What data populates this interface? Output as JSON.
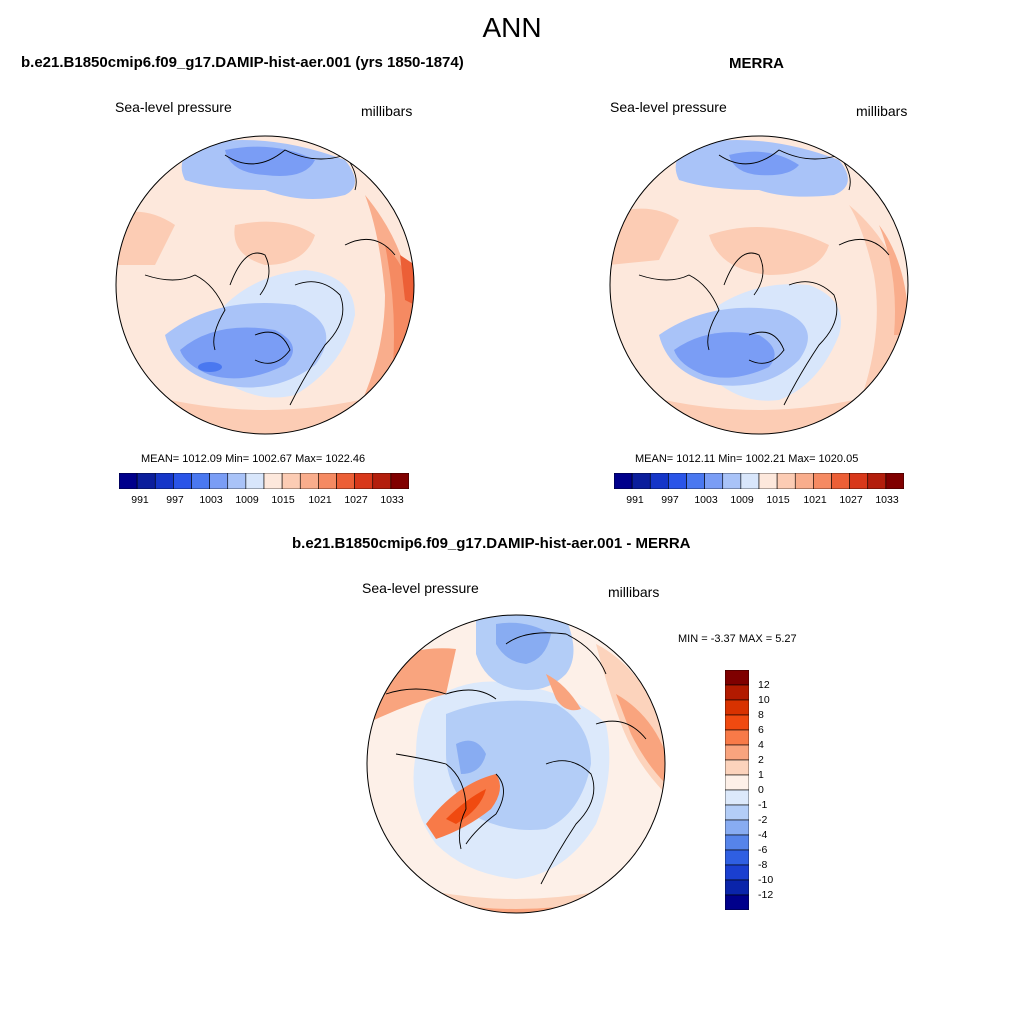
{
  "title": "ANN",
  "panels": {
    "model": {
      "title": "b.e21.B1850cmip6.f09_g17.DAMIP-hist-aer.001 (yrs 1850-1874)",
      "variable": "Sea-level pressure",
      "units": "millibars",
      "stats": "MEAN= 1012.09  Min= 1002.67  Max= 1022.46"
    },
    "obs": {
      "title": "MERRA",
      "variable": "Sea-level pressure",
      "units": "millibars",
      "stats": "MEAN= 1012.11  Min= 1002.21  Max= 1020.05"
    },
    "diff": {
      "title": "b.e21.B1850cmip6.f09_g17.DAMIP-hist-aer.001 - MERRA",
      "variable": "Sea-level pressure",
      "units": "millibars",
      "stats": "MIN =  -3.37 MAX =   5.27"
    }
  },
  "chart_data": [
    {
      "type": "heatmap",
      "title": "b.e21.B1850cmip6.f09_g17.DAMIP-hist-aer.001 (yrs 1850-1874)",
      "variable": "Sea-level pressure",
      "units": "millibars",
      "projection": "north polar stereographic",
      "mean": 1012.09,
      "min": 1002.67,
      "max": 1022.46,
      "colorbar": {
        "tick_labels": [
          "991",
          "997",
          "1003",
          "1009",
          "1015",
          "1021",
          "1027",
          "1033"
        ],
        "colors": [
          "#00008b",
          "#0b1e9c",
          "#1536c8",
          "#2a55e8",
          "#4a78f0",
          "#7a9df5",
          "#a9c3f8",
          "#d8e6fb",
          "#fde8dc",
          "#fcccb4",
          "#f9ad8c",
          "#f58a62",
          "#ec5f36",
          "#d8381a",
          "#b31e0c",
          "#800000"
        ]
      }
    },
    {
      "type": "heatmap",
      "title": "MERRA",
      "variable": "Sea-level pressure",
      "units": "millibars",
      "projection": "north polar stereographic",
      "mean": 1012.11,
      "min": 1002.21,
      "max": 1020.05,
      "colorbar": {
        "tick_labels": [
          "991",
          "997",
          "1003",
          "1009",
          "1015",
          "1021",
          "1027",
          "1033"
        ],
        "colors": [
          "#00008b",
          "#0b1e9c",
          "#1536c8",
          "#2a55e8",
          "#4a78f0",
          "#7a9df5",
          "#a9c3f8",
          "#d8e6fb",
          "#fde8dc",
          "#fcccb4",
          "#f9ad8c",
          "#f58a62",
          "#ec5f36",
          "#d8381a",
          "#b31e0c",
          "#800000"
        ]
      }
    },
    {
      "type": "heatmap",
      "title": "b.e21.B1850cmip6.f09_g17.DAMIP-hist-aer.001 - MERRA",
      "variable": "Sea-level pressure",
      "units": "millibars",
      "projection": "north polar stereographic",
      "min": -3.37,
      "max": 5.27,
      "colorbar": {
        "orientation": "vertical",
        "tick_labels": [
          "12",
          "10",
          "8",
          "6",
          "4",
          "2",
          "1",
          "0",
          "-1",
          "-2",
          "-4",
          "-6",
          "-8",
          "-10",
          "-12"
        ],
        "colors": [
          "#7f0000",
          "#b21a00",
          "#d83200",
          "#f04a10",
          "#f87a48",
          "#f9a47e",
          "#fcd3bc",
          "#fdf0e8",
          "#dce9fb",
          "#b3cdf7",
          "#88acf2",
          "#5684ea",
          "#2f5fe2",
          "#1a3fd0",
          "#0a24aa",
          "#00008b"
        ]
      }
    }
  ]
}
